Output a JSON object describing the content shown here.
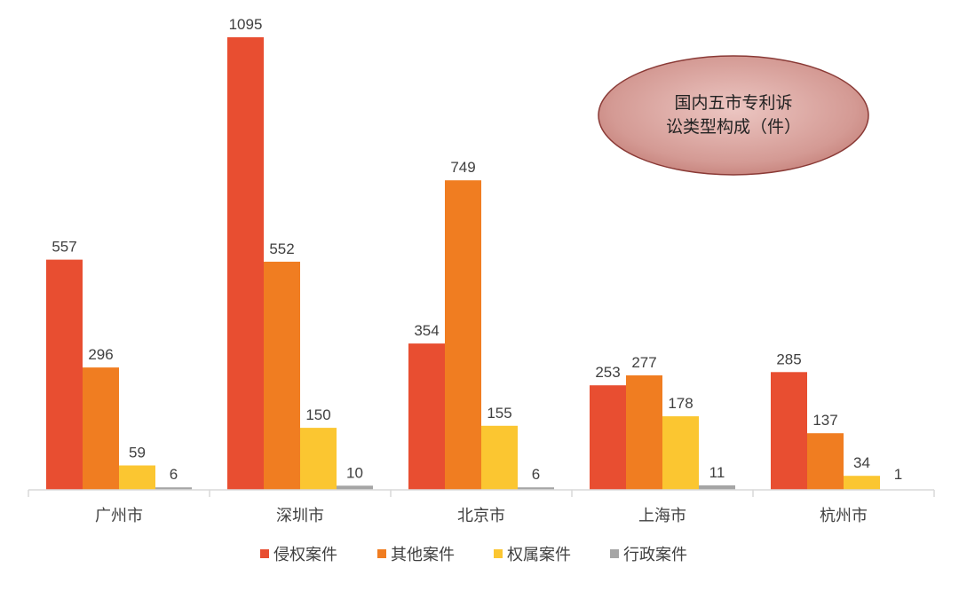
{
  "chart_data": {
    "type": "bar",
    "title": "",
    "xlabel": "",
    "ylabel": "",
    "categories": [
      "广州市",
      "深圳市",
      "北京市",
      "上海市",
      "杭州市"
    ],
    "series": [
      {
        "name": "侵权案件",
        "color": "#e84e31",
        "values": [
          557,
          1095,
          354,
          253,
          285
        ]
      },
      {
        "name": "其他案件",
        "color": "#f07d21",
        "values": [
          296,
          552,
          749,
          277,
          137
        ]
      },
      {
        "name": "权属案件",
        "color": "#fbc631",
        "values": [
          59,
          150,
          155,
          178,
          34
        ]
      },
      {
        "name": "行政案件",
        "color": "#a5a5a5",
        "values": [
          6,
          10,
          6,
          11,
          1
        ]
      }
    ],
    "ylim": [
      0,
      1095
    ],
    "grid": false,
    "legend": "bottom",
    "annotation": {
      "lines": [
        "国内五市专利诉",
        "讼类型构成（件）"
      ],
      "fill": "#cd8c86",
      "border": "#8a3a36"
    }
  }
}
